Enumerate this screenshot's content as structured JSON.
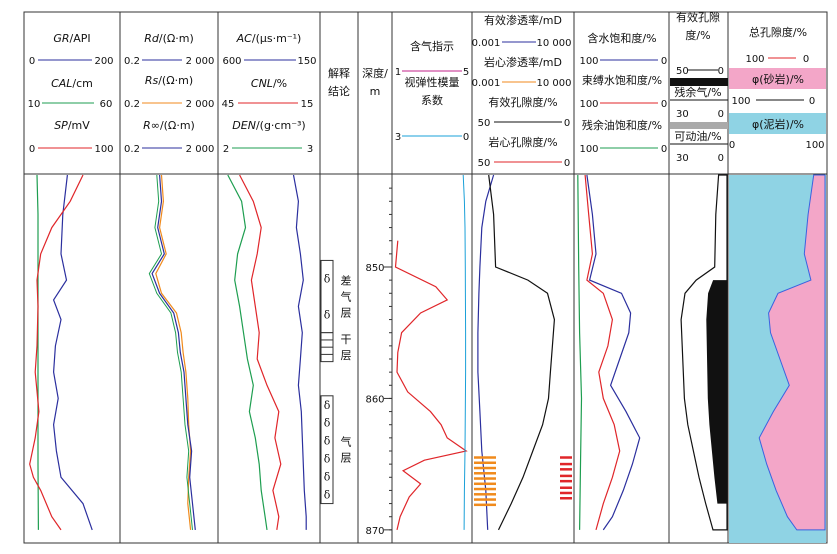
{
  "header": {
    "track1": [
      {
        "name": "GR",
        "unit": "/API",
        "min": "0",
        "max": "200",
        "color": "#2b2f9e"
      },
      {
        "name": "CAL",
        "unit": "/cm",
        "min": "10",
        "max": "60",
        "color": "#1e9e50"
      },
      {
        "name": "SP",
        "unit": "/mV",
        "min": "0",
        "max": "100",
        "color": "#e0262a"
      }
    ],
    "track2": [
      {
        "name": "Rd",
        "unit": "/(Ω·m)",
        "min": "0.2",
        "max": "2 000",
        "color": "#2b2f9e"
      },
      {
        "name": "Rs",
        "unit": "/(Ω·m)",
        "min": "0.2",
        "max": "2 000",
        "color": "#f08a1c"
      },
      {
        "name": "R∞",
        "unit": "/(Ω·m)",
        "min": "0.2",
        "max": "2 000",
        "color": "#2b2f9e"
      }
    ],
    "track3": [
      {
        "name": "AC",
        "unit": "/(μs·m⁻¹)",
        "min": "600",
        "max": "150",
        "color": "#2b2f9e"
      },
      {
        "name": "CNL",
        "unit": "/%",
        "min": "45",
        "max": "15",
        "color": "#e0262a"
      },
      {
        "name": "DEN",
        "unit": "/(g·cm⁻³)",
        "min": "2",
        "max": "3",
        "color": "#1e9e50"
      }
    ],
    "interpretation": "解释结论",
    "depth": "深度/m",
    "gas_index": {
      "title": "含气指示",
      "min": "1",
      "max": "5",
      "color": "#c0208a"
    },
    "modulus": {
      "title": "视弹性模量系数",
      "min": "3",
      "max": "0",
      "color": "#1aa0d8"
    },
    "perm_eff": {
      "title": "有效渗透率/mD",
      "min": "0.001",
      "max": "10 000",
      "color": "#2b2f9e"
    },
    "perm_core": {
      "title": "岩心渗透率/mD",
      "min": "0.001",
      "max": "10 000",
      "color": "#f08a1c"
    },
    "por_eff": {
      "title": "有效孔隙度/%",
      "min": "50",
      "max": "0",
      "color": "#111111"
    },
    "por_core": {
      "title": "岩心孔隙度/%",
      "min": "50",
      "max": "0",
      "color": "#e0262a"
    },
    "sw": {
      "title": "含水饱和度/%",
      "min": "100",
      "max": "0",
      "color": "#2b2f9e"
    },
    "swb": {
      "title": "束缚水饱和度/%",
      "min": "100",
      "max": "0",
      "color": "#e0262a"
    },
    "so": {
      "title": "残余油饱和度/%",
      "min": "100",
      "max": "0",
      "color": "#1e9e50"
    },
    "por_col": {
      "title": "有效孔隙度/%",
      "min": "50",
      "max": "0",
      "residual_gas": "残余气/%",
      "residual_min": "30",
      "residual_max": "0",
      "movable_oil": "可动油/%",
      "movable_min": "30",
      "movable_max": "0"
    },
    "total_por": {
      "title": "总孔隙度/%",
      "min": "100",
      "max": "0",
      "sand": "φ(砂岩)/%",
      "sand_min": "100",
      "sand_max": "0",
      "mud": "φ(泥岩)/%",
      "mud_min": "0",
      "mud_max": "100"
    }
  },
  "depth_ticks": [
    "850",
    "860",
    "870"
  ],
  "zones": [
    {
      "label": "差气层",
      "symbol": "δ",
      "count": 2,
      "top": 849.5,
      "bottom": 855.0
    },
    {
      "label": "干层",
      "symbol": "",
      "count": 0,
      "top": 855.0,
      "bottom": 857.2
    },
    {
      "label": "气层",
      "symbol": "δ",
      "count": 6,
      "top": 859.8,
      "bottom": 868.0
    }
  ],
  "curves": {
    "GR": [
      [
        843,
        45
      ],
      [
        846,
        40
      ],
      [
        849,
        38
      ],
      [
        851,
        44
      ],
      [
        852.5,
        30
      ],
      [
        854,
        38
      ],
      [
        856,
        32
      ],
      [
        858,
        30
      ],
      [
        860,
        35
      ],
      [
        862,
        30
      ],
      [
        864,
        33
      ],
      [
        866,
        38
      ],
      [
        868,
        62
      ],
      [
        870,
        72
      ]
    ],
    "CAL": [
      [
        843,
        12
      ],
      [
        846,
        13
      ],
      [
        850,
        13
      ],
      [
        855,
        13
      ],
      [
        860,
        13
      ],
      [
        865,
        13
      ],
      [
        870,
        13.5
      ]
    ],
    "SP": [
      [
        843,
        62
      ],
      [
        845,
        48
      ],
      [
        847,
        28
      ],
      [
        849,
        16
      ],
      [
        851,
        12
      ],
      [
        853,
        13
      ],
      [
        856,
        12
      ],
      [
        858,
        10
      ],
      [
        861,
        14
      ],
      [
        863,
        10
      ],
      [
        865,
        4
      ],
      [
        866,
        8
      ],
      [
        867,
        16
      ],
      [
        869,
        28
      ],
      [
        870,
        38
      ]
    ],
    "Rd": [
      [
        843,
        40
      ],
      [
        845,
        42
      ],
      [
        847,
        38
      ],
      [
        849,
        45
      ],
      [
        850.5,
        32
      ],
      [
        852,
        40
      ],
      [
        853.5,
        55
      ],
      [
        855,
        60
      ],
      [
        856.5,
        62
      ],
      [
        858,
        66
      ],
      [
        860,
        68
      ],
      [
        862,
        70
      ],
      [
        864,
        74
      ],
      [
        866,
        72
      ],
      [
        868,
        75
      ],
      [
        870,
        78
      ]
    ],
    "Rs": [
      [
        843,
        42
      ],
      [
        845,
        44
      ],
      [
        847,
        40
      ],
      [
        849,
        47
      ],
      [
        850.5,
        36
      ],
      [
        852,
        42
      ],
      [
        853.5,
        58
      ],
      [
        855,
        63
      ],
      [
        856.5,
        65
      ],
      [
        858,
        68
      ],
      [
        860,
        70
      ],
      [
        862,
        71
      ],
      [
        864,
        73
      ],
      [
        866,
        71
      ],
      [
        868,
        70
      ],
      [
        870,
        73
      ]
    ],
    "AC": [
      [
        843,
        75
      ],
      [
        845,
        80
      ],
      [
        847,
        78
      ],
      [
        849,
        82
      ],
      [
        851,
        85
      ],
      [
        853,
        80
      ],
      [
        855,
        84
      ],
      [
        857,
        82
      ],
      [
        859,
        80
      ],
      [
        861,
        83
      ],
      [
        863,
        84
      ],
      [
        865,
        85
      ],
      [
        867,
        86
      ],
      [
        869,
        88
      ],
      [
        870,
        88
      ]
    ],
    "CNL": [
      [
        843,
        20
      ],
      [
        845,
        34
      ],
      [
        847,
        42
      ],
      [
        849,
        38
      ],
      [
        851,
        32
      ],
      [
        853,
        36
      ],
      [
        855,
        40
      ],
      [
        857,
        38
      ],
      [
        859,
        48
      ],
      [
        861,
        60
      ],
      [
        863,
        56
      ],
      [
        865,
        62
      ],
      [
        867,
        54
      ],
      [
        869,
        60
      ],
      [
        870,
        58
      ]
    ],
    "DEN": [
      [
        843,
        8
      ],
      [
        845,
        22
      ],
      [
        847,
        26
      ],
      [
        849,
        18
      ],
      [
        851,
        15
      ],
      [
        853,
        20
      ],
      [
        855,
        24
      ],
      [
        857,
        28
      ],
      [
        859,
        34
      ],
      [
        861,
        30
      ],
      [
        863,
        36
      ],
      [
        865,
        40
      ],
      [
        867,
        42
      ],
      [
        869,
        46
      ],
      [
        870,
        48
      ]
    ],
    "gas": [
      [
        848,
        5
      ],
      [
        850,
        2
      ],
      [
        851.5,
        55
      ],
      [
        852.5,
        70
      ],
      [
        853.5,
        35
      ],
      [
        855,
        10
      ],
      [
        856.5,
        5
      ],
      [
        858,
        4
      ],
      [
        859.5,
        18
      ],
      [
        861,
        48
      ],
      [
        862,
        62
      ],
      [
        863,
        70
      ],
      [
        864,
        95
      ],
      [
        864.7,
        40
      ],
      [
        865.5,
        12
      ],
      [
        866.5,
        35
      ],
      [
        867.5,
        20
      ],
      [
        869,
        8
      ],
      [
        870,
        4
      ]
    ],
    "perm": [
      [
        843,
        20
      ],
      [
        845,
        12
      ],
      [
        847,
        8
      ],
      [
        850,
        6
      ],
      [
        852,
        5
      ],
      [
        855,
        4
      ],
      [
        858,
        4
      ],
      [
        861,
        6
      ],
      [
        864,
        8
      ],
      [
        867,
        12
      ],
      [
        870,
        14
      ]
    ],
    "por_eff": [
      [
        843,
        15
      ],
      [
        846,
        20
      ],
      [
        850,
        22
      ],
      [
        851,
        55
      ],
      [
        852,
        75
      ],
      [
        854,
        82
      ],
      [
        856,
        80
      ],
      [
        858,
        78
      ],
      [
        860,
        76
      ],
      [
        862,
        70
      ],
      [
        864,
        60
      ],
      [
        866,
        50
      ],
      [
        868,
        38
      ],
      [
        870,
        25
      ]
    ],
    "sw": [
      [
        843,
        12
      ],
      [
        846,
        18
      ],
      [
        849,
        22
      ],
      [
        851,
        15
      ],
      [
        852,
        50
      ],
      [
        853.5,
        60
      ],
      [
        855,
        58
      ],
      [
        857,
        48
      ],
      [
        859,
        38
      ],
      [
        861,
        55
      ],
      [
        863,
        70
      ],
      [
        865,
        62
      ],
      [
        867,
        52
      ],
      [
        869,
        40
      ],
      [
        870,
        30
      ]
    ],
    "swb": [
      [
        843,
        10
      ],
      [
        846,
        14
      ],
      [
        849,
        18
      ],
      [
        851,
        12
      ],
      [
        852,
        30
      ],
      [
        854,
        40
      ],
      [
        856,
        35
      ],
      [
        858,
        25
      ],
      [
        860,
        30
      ],
      [
        862,
        42
      ],
      [
        864,
        48
      ],
      [
        866,
        40
      ],
      [
        868,
        30
      ],
      [
        870,
        22
      ]
    ],
    "so": [
      [
        843,
        2
      ],
      [
        850,
        3
      ],
      [
        855,
        4
      ],
      [
        860,
        6
      ],
      [
        865,
        5
      ],
      [
        870,
        4
      ]
    ]
  },
  "bands": {
    "perm_core": [
      864.4,
      864.8,
      865.2,
      865.6,
      866.0,
      866.4,
      866.8,
      867.2,
      867.6,
      868.0
    ],
    "por_core": [
      864.4,
      864.9,
      865.3,
      865.8,
      866.2,
      866.7,
      867.1,
      867.5
    ]
  },
  "colors": {
    "sand": "#f3a6c8",
    "mud": "#8fd3e4",
    "gas_fill": "#111111",
    "frame": "#333333"
  },
  "depth_range": [
    843,
    871
  ]
}
